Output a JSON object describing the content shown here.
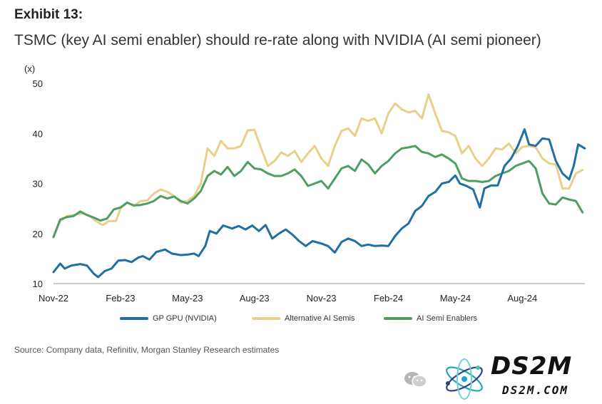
{
  "exhibit_label": "Exhibit 13:",
  "title": "TSMC (key AI semi enabler) should re-rate along with NVIDIA (AI semi pioneer)",
  "source": "Source: Company data, Refinitiv, Morgan Stanley Research estimates",
  "watermark": {
    "chat_icon": "wechat-icon",
    "brand": "DS2M",
    "url": "DS2M.COM"
  },
  "chart_data": {
    "type": "line",
    "title": "TSMC (key AI semi enabler) should re-rate along with NVIDIA (AI semi pioneer)",
    "ylabel": "(x)",
    "xlabel": "",
    "ylim": [
      10,
      50
    ],
    "yticks": [
      10,
      20,
      30,
      40,
      50
    ],
    "xlim": [
      0,
      24.3
    ],
    "xticks": [
      {
        "label": "Nov-22",
        "x": 0
      },
      {
        "label": "Feb-23",
        "x": 3
      },
      {
        "label": "May-23",
        "x": 6
      },
      {
        "label": "Aug-23",
        "x": 9
      },
      {
        "label": "Nov-23",
        "x": 12
      },
      {
        "label": "Feb-24",
        "x": 15
      },
      {
        "label": "May-24",
        "x": 18
      },
      {
        "label": "Aug-24",
        "x": 21
      }
    ],
    "grid": false,
    "legend_position": "bottom",
    "series": [
      {
        "name": "GP GPU (NVIDIA)",
        "color": "#1f6fa3",
        "points": [
          [
            0,
            12.3
          ],
          [
            0.3,
            14
          ],
          [
            0.5,
            13
          ],
          [
            0.8,
            13.6
          ],
          [
            1.2,
            13.9
          ],
          [
            1.5,
            13.6
          ],
          [
            1.8,
            12
          ],
          [
            2.0,
            11.3
          ],
          [
            2.3,
            12.5
          ],
          [
            2.6,
            13
          ],
          [
            2.9,
            14.6
          ],
          [
            3.2,
            14.7
          ],
          [
            3.5,
            14.3
          ],
          [
            3.8,
            15.2
          ],
          [
            4.0,
            15.5
          ],
          [
            4.3,
            14.8
          ],
          [
            4.6,
            16.3
          ],
          [
            5.0,
            16.8
          ],
          [
            5.3,
            16
          ],
          [
            5.7,
            15.7
          ],
          [
            6.0,
            15.8
          ],
          [
            6.3,
            16
          ],
          [
            6.5,
            15.5
          ],
          [
            6.8,
            17.5
          ],
          [
            7.0,
            20.5
          ],
          [
            7.3,
            20
          ],
          [
            7.6,
            21.6
          ],
          [
            8.0,
            21
          ],
          [
            8.3,
            21.5
          ],
          [
            8.6,
            20.8
          ],
          [
            8.9,
            21.6
          ],
          [
            9.2,
            20.5
          ],
          [
            9.5,
            21.7
          ],
          [
            9.8,
            19
          ],
          [
            10.1,
            20
          ],
          [
            10.4,
            20.8
          ],
          [
            10.7,
            19.8
          ],
          [
            11.0,
            18.5
          ],
          [
            11.3,
            17.5
          ],
          [
            11.6,
            18.5
          ],
          [
            12.0,
            18
          ],
          [
            12.3,
            17.5
          ],
          [
            12.6,
            16.2
          ],
          [
            12.9,
            18.3
          ],
          [
            13.2,
            19
          ],
          [
            13.5,
            18.5
          ],
          [
            13.8,
            17.5
          ],
          [
            14.1,
            17.8
          ],
          [
            14.4,
            17.5
          ],
          [
            14.7,
            17.6
          ],
          [
            15.0,
            17.5
          ],
          [
            15.3,
            19.5
          ],
          [
            15.6,
            21
          ],
          [
            15.9,
            22
          ],
          [
            16.2,
            24.5
          ],
          [
            16.5,
            25.5
          ],
          [
            16.8,
            27.5
          ],
          [
            17.1,
            28.3
          ],
          [
            17.4,
            30
          ],
          [
            17.7,
            30.3
          ],
          [
            18.0,
            31.6
          ],
          [
            18.2,
            30
          ],
          [
            18.5,
            29.5
          ],
          [
            18.8,
            28.8
          ],
          [
            19.1,
            25.2
          ],
          [
            19.3,
            29
          ],
          [
            19.6,
            29.6
          ],
          [
            19.9,
            29.6
          ],
          [
            20.2,
            33.5
          ],
          [
            20.5,
            35
          ],
          [
            20.8,
            37.5
          ],
          [
            21.1,
            40.8
          ],
          [
            21.3,
            37.8
          ],
          [
            21.6,
            37.5
          ],
          [
            21.9,
            39
          ],
          [
            22.2,
            38.8
          ],
          [
            22.5,
            34.5
          ],
          [
            22.8,
            32
          ],
          [
            23.1,
            30.8
          ],
          [
            23.3,
            33.5
          ],
          [
            23.5,
            37.8
          ],
          [
            23.8,
            37
          ],
          [
            24.0,
            30
          ],
          [
            24.2,
            34.2
          ],
          [
            24.4,
            33.8
          ],
          [
            24.6,
            35
          ],
          [
            24.8,
            35.3
          ],
          [
            25.1,
            36
          ],
          [
            25.3,
            38
          ]
        ]
      },
      {
        "name": "Alternative AI Semis",
        "color": "#e8d08a",
        "points": [
          [
            0,
            19.3
          ],
          [
            0.3,
            22.5
          ],
          [
            0.6,
            23.5
          ],
          [
            1.0,
            23.8
          ],
          [
            1.3,
            24
          ],
          [
            1.6,
            23.6
          ],
          [
            1.9,
            22.5
          ],
          [
            2.2,
            21.7
          ],
          [
            2.5,
            22.5
          ],
          [
            2.8,
            22.5
          ],
          [
            3.0,
            25
          ],
          [
            3.3,
            26.2
          ],
          [
            3.6,
            25.5
          ],
          [
            3.9,
            26.5
          ],
          [
            4.2,
            26.6
          ],
          [
            4.5,
            28
          ],
          [
            4.8,
            28.8
          ],
          [
            5.1,
            28.3
          ],
          [
            5.4,
            27.5
          ],
          [
            5.7,
            26.2
          ],
          [
            6.0,
            26.5
          ],
          [
            6.3,
            27.5
          ],
          [
            6.6,
            30
          ],
          [
            6.9,
            37
          ],
          [
            7.2,
            35.5
          ],
          [
            7.5,
            38.5
          ],
          [
            7.8,
            37
          ],
          [
            8.1,
            37
          ],
          [
            8.4,
            37.5
          ],
          [
            8.7,
            40.6
          ],
          [
            9.0,
            40.7
          ],
          [
            9.3,
            37
          ],
          [
            9.6,
            33.5
          ],
          [
            9.9,
            34.5
          ],
          [
            10.2,
            36.2
          ],
          [
            10.5,
            35.5
          ],
          [
            10.8,
            36.5
          ],
          [
            11.1,
            34.3
          ],
          [
            11.4,
            36
          ],
          [
            11.7,
            37.5
          ],
          [
            12.0,
            35
          ],
          [
            12.3,
            33.5
          ],
          [
            12.6,
            37.5
          ],
          [
            12.9,
            40.5
          ],
          [
            13.2,
            41
          ],
          [
            13.5,
            39.5
          ],
          [
            13.8,
            43
          ],
          [
            14.1,
            42.5
          ],
          [
            14.4,
            43
          ],
          [
            14.7,
            40
          ],
          [
            15.0,
            44
          ],
          [
            15.3,
            46
          ],
          [
            15.6,
            44.8
          ],
          [
            15.9,
            44.2
          ],
          [
            16.2,
            44.5
          ],
          [
            16.5,
            43
          ],
          [
            16.8,
            47.8
          ],
          [
            17.1,
            44
          ],
          [
            17.4,
            40.5
          ],
          [
            17.7,
            40.2
          ],
          [
            18.0,
            39.5
          ],
          [
            18.3,
            36
          ],
          [
            18.6,
            37.5
          ],
          [
            18.9,
            35
          ],
          [
            19.2,
            33.5
          ],
          [
            19.5,
            35
          ],
          [
            19.8,
            37
          ],
          [
            20.1,
            36.8
          ],
          [
            20.4,
            38
          ],
          [
            20.7,
            36
          ],
          [
            21.0,
            37.3
          ],
          [
            21.3,
            37.5
          ],
          [
            21.6,
            37.2
          ],
          [
            21.9,
            35
          ],
          [
            22.2,
            34
          ],
          [
            22.5,
            33.8
          ],
          [
            22.8,
            29
          ],
          [
            23.1,
            29
          ],
          [
            23.4,
            32
          ],
          [
            23.7,
            32.7
          ],
          [
            24.0,
            29.8
          ],
          [
            24.3,
            31.5
          ],
          [
            24.6,
            30.5
          ],
          [
            24.9,
            30.6
          ],
          [
            25.1,
            30.2
          ],
          [
            25.3,
            31.3
          ]
        ]
      },
      {
        "name": "AI Semi Enablers",
        "color": "#4e9e63",
        "points": [
          [
            0,
            19.3
          ],
          [
            0.3,
            22.8
          ],
          [
            0.6,
            23.3
          ],
          [
            0.9,
            23.5
          ],
          [
            1.2,
            24.4
          ],
          [
            1.5,
            23.7
          ],
          [
            1.8,
            23.2
          ],
          [
            2.1,
            22.6
          ],
          [
            2.4,
            23
          ],
          [
            2.7,
            24.8
          ],
          [
            3.0,
            25.2
          ],
          [
            3.3,
            26.2
          ],
          [
            3.6,
            25.6
          ],
          [
            3.9,
            25.7
          ],
          [
            4.2,
            26
          ],
          [
            4.5,
            26.5
          ],
          [
            4.8,
            27.5
          ],
          [
            5.1,
            27
          ],
          [
            5.4,
            27.4
          ],
          [
            5.7,
            26.5
          ],
          [
            6.0,
            26
          ],
          [
            6.3,
            27
          ],
          [
            6.6,
            28.5
          ],
          [
            6.9,
            31.5
          ],
          [
            7.2,
            32.5
          ],
          [
            7.5,
            31.8
          ],
          [
            7.8,
            33.3
          ],
          [
            8.1,
            31.5
          ],
          [
            8.4,
            32.5
          ],
          [
            8.7,
            34.3
          ],
          [
            9.0,
            33
          ],
          [
            9.3,
            32.8
          ],
          [
            9.6,
            32
          ],
          [
            9.9,
            31.5
          ],
          [
            10.2,
            31.5
          ],
          [
            10.5,
            32
          ],
          [
            10.8,
            32.8
          ],
          [
            11.1,
            31.5
          ],
          [
            11.4,
            29.5
          ],
          [
            11.7,
            30
          ],
          [
            12.0,
            30.5
          ],
          [
            12.3,
            29
          ],
          [
            12.6,
            31
          ],
          [
            12.9,
            33
          ],
          [
            13.2,
            33.5
          ],
          [
            13.5,
            32.5
          ],
          [
            13.8,
            34.8
          ],
          [
            14.1,
            33.8
          ],
          [
            14.4,
            32
          ],
          [
            14.7,
            33.5
          ],
          [
            15.0,
            34.5
          ],
          [
            15.3,
            36
          ],
          [
            15.6,
            37
          ],
          [
            15.9,
            37.2
          ],
          [
            16.2,
            37.5
          ],
          [
            16.5,
            36.3
          ],
          [
            16.8,
            36
          ],
          [
            17.1,
            35.3
          ],
          [
            17.4,
            35.8
          ],
          [
            17.7,
            35
          ],
          [
            18.0,
            34
          ],
          [
            18.3,
            31
          ],
          [
            18.6,
            30.5
          ],
          [
            18.9,
            30.5
          ],
          [
            19.2,
            30.3
          ],
          [
            19.5,
            30.5
          ],
          [
            19.8,
            31.5
          ],
          [
            20.1,
            32
          ],
          [
            20.4,
            32.5
          ],
          [
            20.7,
            33.5
          ],
          [
            21.0,
            34
          ],
          [
            21.3,
            34.5
          ],
          [
            21.6,
            33
          ],
          [
            21.9,
            28
          ],
          [
            22.2,
            26
          ],
          [
            22.5,
            25.8
          ],
          [
            22.8,
            27.2
          ],
          [
            23.1,
            26.8
          ],
          [
            23.4,
            26.5
          ],
          [
            23.7,
            24.2
          ],
          [
            24.0,
            25.2
          ],
          [
            24.3,
            25
          ],
          [
            24.6,
            26.3
          ],
          [
            24.9,
            26.2
          ],
          [
            25.1,
            26.5
          ],
          [
            25.3,
            26.7
          ]
        ]
      }
    ]
  }
}
